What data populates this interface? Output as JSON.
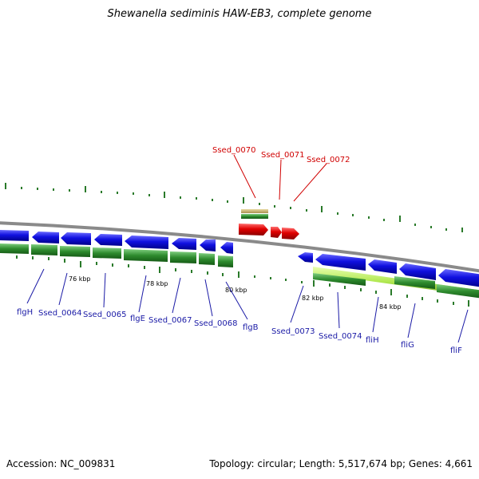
{
  "title": "Shewanella sediminis HAW-EB3, complete genome",
  "footer": {
    "accession": "Accession: NC_009831",
    "summary": "Topology: circular; Length: 5,517,674 bp; Genes: 4,661"
  },
  "scale_labels": [
    "76 kbp",
    "78 kbp",
    "80 kbp",
    "82 kbp",
    "84 kbp"
  ],
  "genes_top": [
    {
      "name": "Ssed_0070",
      "color": "#d00000"
    },
    {
      "name": "Ssed_0071",
      "color": "#d00000"
    },
    {
      "name": "Ssed_0072",
      "color": "#d00000"
    }
  ],
  "genes_bottom": [
    {
      "name": "flgH",
      "color": "#1a1aa6"
    },
    {
      "name": "Ssed_0064",
      "color": "#1a1aa6"
    },
    {
      "name": "Ssed_0065",
      "color": "#1a1aa6"
    },
    {
      "name": "flgE",
      "color": "#1a1aa6"
    },
    {
      "name": "Ssed_0067",
      "color": "#1a1aa6"
    },
    {
      "name": "Ssed_0068",
      "color": "#1a1aa6"
    },
    {
      "name": "flgB",
      "color": "#1a1aa6"
    },
    {
      "name": "Ssed_0073",
      "color": "#1a1aa6"
    },
    {
      "name": "Ssed_0074",
      "color": "#1a1aa6"
    },
    {
      "name": "fliH",
      "color": "#1a1aa6"
    },
    {
      "name": "fliG",
      "color": "#1a1aa6"
    },
    {
      "name": "fliF",
      "color": "#1a1aa6"
    }
  ],
  "colors": {
    "backbone": "#8a8a8a",
    "cds_reverse": "#1010e0",
    "cds_forward": "#e00000",
    "gene_track": "#2e8b2e",
    "gene_track_light": "#a8e060",
    "tick": "#2a7a2a"
  }
}
